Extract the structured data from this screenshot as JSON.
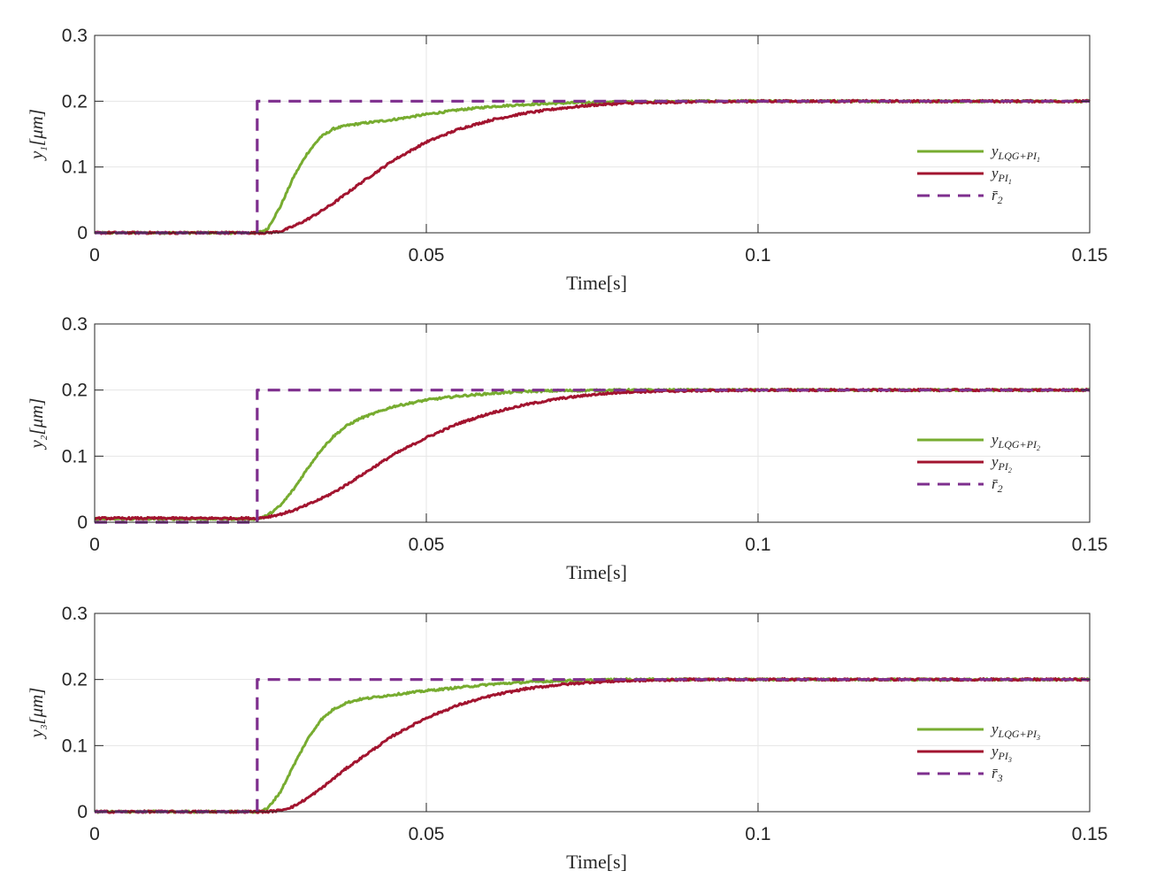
{
  "colors": {
    "lqg": "#77ac30",
    "pi": "#a2142f",
    "ref": "#7e2f8e",
    "grid": "#e6e6e6",
    "axis": "#262626"
  },
  "chart_data": [
    {
      "type": "line",
      "xlabel": "Time[s]",
      "ylabel": {
        "var": "y",
        "sub": "1",
        "unit": "[μm]"
      },
      "xlim": [
        0,
        0.15
      ],
      "ylim": [
        0,
        0.3
      ],
      "xticks": [
        "0",
        "0.05",
        "0.1",
        "0.15"
      ],
      "xtick_values": [
        0,
        0.05,
        0.1,
        0.15
      ],
      "yticks": [
        "0",
        "0.1",
        "0.2",
        "0.3"
      ],
      "ytick_values": [
        0,
        0.1,
        0.2,
        0.3
      ],
      "grid": true,
      "legend_position": "right",
      "series": [
        {
          "name": {
            "var": "y",
            "sub": "LQG+PI",
            "subsub": "1"
          },
          "color": "lqg",
          "dash": false,
          "x": [
            0,
            0.0245,
            0.026,
            0.028,
            0.03,
            0.032,
            0.034,
            0.036,
            0.038,
            0.04,
            0.045,
            0.05,
            0.055,
            0.06,
            0.065,
            0.07,
            0.08,
            0.09,
            0.1,
            0.12,
            0.15
          ],
          "y": [
            0,
            0,
            0.005,
            0.04,
            0.085,
            0.12,
            0.145,
            0.158,
            0.163,
            0.166,
            0.172,
            0.18,
            0.187,
            0.192,
            0.195,
            0.197,
            0.199,
            0.2,
            0.2,
            0.2,
            0.2
          ]
        },
        {
          "name": {
            "var": "y",
            "sub": "PI",
            "subsub": "1"
          },
          "color": "pi",
          "dash": false,
          "x": [
            0,
            0.0245,
            0.026,
            0.028,
            0.03,
            0.032,
            0.034,
            0.036,
            0.038,
            0.04,
            0.045,
            0.05,
            0.055,
            0.06,
            0.065,
            0.07,
            0.075,
            0.08,
            0.09,
            0.1,
            0.12,
            0.15
          ],
          "y": [
            0,
            0,
            0,
            0.002,
            0.01,
            0.02,
            0.032,
            0.045,
            0.06,
            0.075,
            0.11,
            0.138,
            0.158,
            0.172,
            0.182,
            0.189,
            0.194,
            0.197,
            0.199,
            0.2,
            0.2,
            0.2
          ]
        },
        {
          "name": {
            "var": "r̄",
            "sub": "2"
          },
          "color": "ref",
          "dash": true,
          "x": [
            0,
            0.0245,
            0.0245,
            0.15
          ],
          "y": [
            0,
            0,
            0.2,
            0.2
          ]
        }
      ]
    },
    {
      "type": "line",
      "xlabel": "Time[s]",
      "ylabel": {
        "var": "y",
        "sub": "2",
        "unit": "[μm]"
      },
      "xlim": [
        0,
        0.15
      ],
      "ylim": [
        0,
        0.3
      ],
      "xticks": [
        "0",
        "0.05",
        "0.1",
        "0.15"
      ],
      "xtick_values": [
        0,
        0.05,
        0.1,
        0.15
      ],
      "yticks": [
        "0",
        "0.1",
        "0.2",
        "0.3"
      ],
      "ytick_values": [
        0,
        0.1,
        0.2,
        0.3
      ],
      "grid": true,
      "legend_position": "right",
      "series": [
        {
          "name": {
            "var": "y",
            "sub": "LQG+PI",
            "subsub": "2"
          },
          "color": "lqg",
          "dash": false,
          "x": [
            0,
            0.0245,
            0.026,
            0.028,
            0.03,
            0.032,
            0.034,
            0.036,
            0.038,
            0.04,
            0.045,
            0.05,
            0.055,
            0.06,
            0.065,
            0.07,
            0.08,
            0.09,
            0.1,
            0.12,
            0.15
          ],
          "y": [
            0.005,
            0.005,
            0.01,
            0.025,
            0.05,
            0.08,
            0.108,
            0.13,
            0.146,
            0.157,
            0.175,
            0.185,
            0.191,
            0.195,
            0.198,
            0.199,
            0.2,
            0.2,
            0.2,
            0.2,
            0.2
          ]
        },
        {
          "name": {
            "var": "y",
            "sub": "PI",
            "subsub": "2"
          },
          "color": "pi",
          "dash": false,
          "x": [
            0,
            0.0245,
            0.026,
            0.028,
            0.03,
            0.032,
            0.034,
            0.036,
            0.038,
            0.04,
            0.045,
            0.05,
            0.055,
            0.06,
            0.065,
            0.07,
            0.075,
            0.08,
            0.09,
            0.1,
            0.12,
            0.15
          ],
          "y": [
            0.006,
            0.006,
            0.008,
            0.012,
            0.018,
            0.026,
            0.035,
            0.045,
            0.057,
            0.07,
            0.102,
            0.128,
            0.15,
            0.166,
            0.178,
            0.187,
            0.193,
            0.197,
            0.199,
            0.2,
            0.2,
            0.2
          ]
        },
        {
          "name": {
            "var": "r̄",
            "sub": "2"
          },
          "color": "ref",
          "dash": true,
          "x": [
            0,
            0.0245,
            0.0245,
            0.15
          ],
          "y": [
            0,
            0,
            0.2,
            0.2
          ]
        }
      ]
    },
    {
      "type": "line",
      "xlabel": "Time[s]",
      "ylabel": {
        "var": "y",
        "sub": "3",
        "unit": "[μm]"
      },
      "xlim": [
        0,
        0.15
      ],
      "ylim": [
        0,
        0.3
      ],
      "xticks": [
        "0",
        "0.05",
        "0.1",
        "0.15"
      ],
      "xtick_values": [
        0,
        0.05,
        0.1,
        0.15
      ],
      "yticks": [
        "0",
        "0.1",
        "0.2",
        "0.3"
      ],
      "ytick_values": [
        0,
        0.1,
        0.2,
        0.3
      ],
      "grid": true,
      "legend_position": "right",
      "series": [
        {
          "name": {
            "var": "y",
            "sub": "LQG+PI",
            "subsub": "3"
          },
          "color": "lqg",
          "dash": false,
          "x": [
            0,
            0.0245,
            0.026,
            0.028,
            0.03,
            0.032,
            0.034,
            0.036,
            0.038,
            0.04,
            0.045,
            0.05,
            0.055,
            0.06,
            0.065,
            0.07,
            0.08,
            0.09,
            0.1,
            0.12,
            0.15
          ],
          "y": [
            0,
            0,
            0.004,
            0.03,
            0.07,
            0.108,
            0.138,
            0.155,
            0.165,
            0.17,
            0.177,
            0.183,
            0.188,
            0.193,
            0.196,
            0.198,
            0.2,
            0.2,
            0.2,
            0.2,
            0.2
          ]
        },
        {
          "name": {
            "var": "y",
            "sub": "PI",
            "subsub": "3"
          },
          "color": "pi",
          "dash": false,
          "x": [
            0,
            0.0245,
            0.026,
            0.028,
            0.03,
            0.032,
            0.034,
            0.036,
            0.038,
            0.04,
            0.045,
            0.05,
            0.055,
            0.06,
            0.065,
            0.07,
            0.075,
            0.08,
            0.09,
            0.1,
            0.12,
            0.15
          ],
          "y": [
            0,
            0,
            0,
            0.002,
            0.008,
            0.02,
            0.034,
            0.05,
            0.066,
            0.08,
            0.115,
            0.142,
            0.162,
            0.176,
            0.186,
            0.192,
            0.196,
            0.198,
            0.2,
            0.2,
            0.2,
            0.2
          ]
        },
        {
          "name": {
            "var": "r̄",
            "sub": "3"
          },
          "color": "ref",
          "dash": true,
          "x": [
            0,
            0.0245,
            0.0245,
            0.15
          ],
          "y": [
            0,
            0,
            0.2,
            0.2
          ]
        }
      ]
    }
  ]
}
